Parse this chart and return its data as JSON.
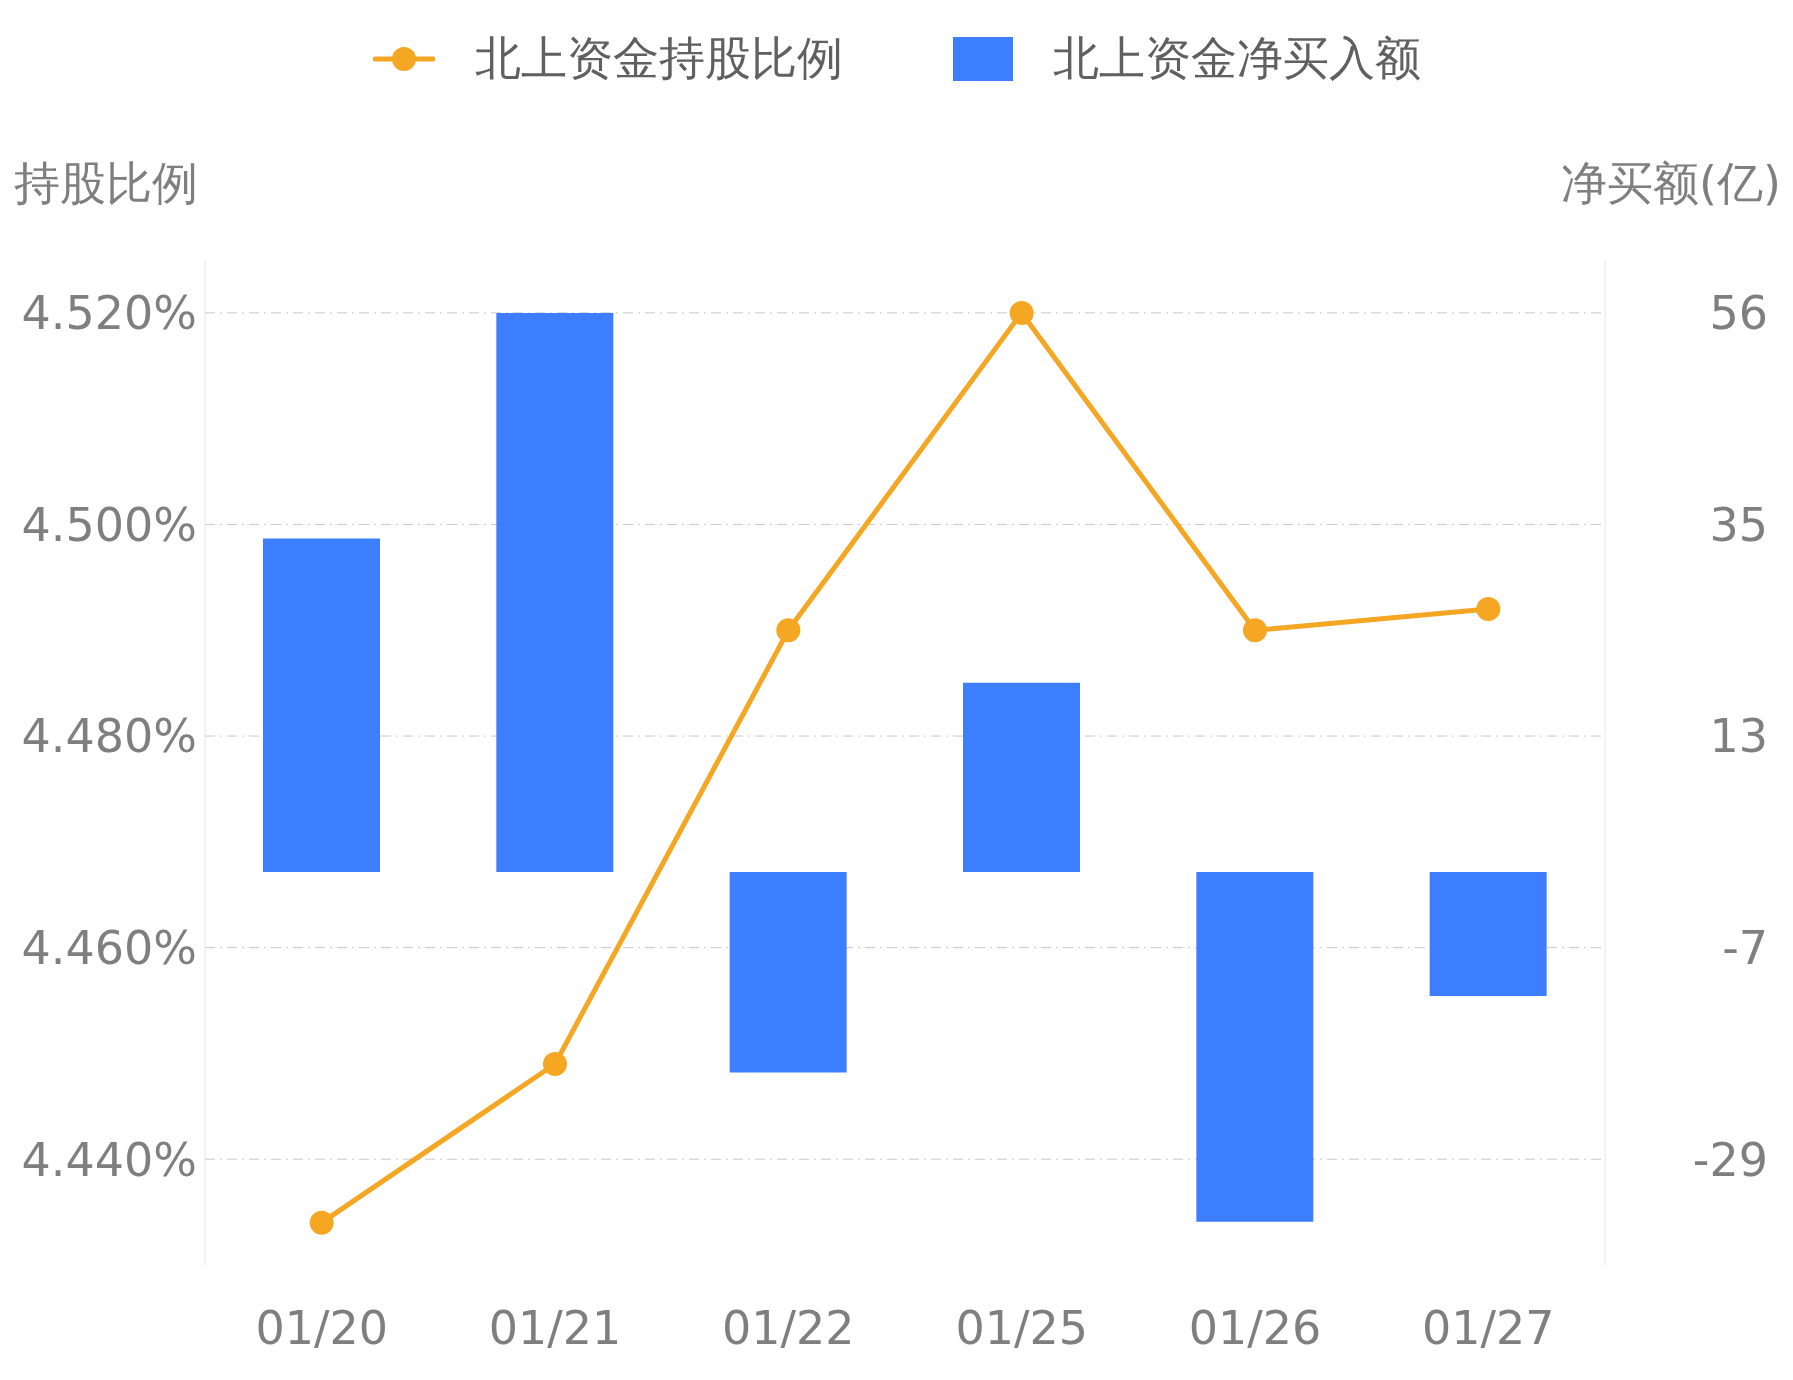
{
  "chart_data": {
    "type": "bar",
    "ylabel": "持股比例",
    "y2label": "净买额(亿)",
    "categories": [
      "01/20",
      "01/21",
      "01/22",
      "01/25",
      "01/26",
      "01/27"
    ],
    "series": [
      {
        "name": "北上资金持股比例",
        "type": "line",
        "color": "#f5a623",
        "marker": "circle",
        "values": [
          4.434,
          4.449,
          4.49,
          4.52,
          4.49,
          4.492
        ]
      },
      {
        "name": "北上资金净买入额",
        "axis": "y2",
        "color": "#3d7eff",
        "values": [
          33.1,
          55.5,
          -19.9,
          18.8,
          -34.7,
          -12.3
        ]
      }
    ],
    "ylim": [
      4.43,
      4.525
    ],
    "yticks": [
      {
        "value": 4.44,
        "label": "4.440%"
      },
      {
        "value": 4.46,
        "label": "4.460%"
      },
      {
        "value": 4.48,
        "label": "4.480%"
      },
      {
        "value": 4.5,
        "label": "4.500%"
      },
      {
        "value": 4.52,
        "label": "4.520%"
      }
    ],
    "y2lim": [
      -39,
      60.75
    ],
    "y2ticks": [
      {
        "value": -28.5,
        "label": "-29"
      },
      {
        "value": -7.5,
        "label": "-7"
      },
      {
        "value": 13.5,
        "label": "13"
      },
      {
        "value": 34.5,
        "label": "35"
      },
      {
        "value": 55.5,
        "label": "56"
      }
    ],
    "grid": "y",
    "legend": "top"
  }
}
